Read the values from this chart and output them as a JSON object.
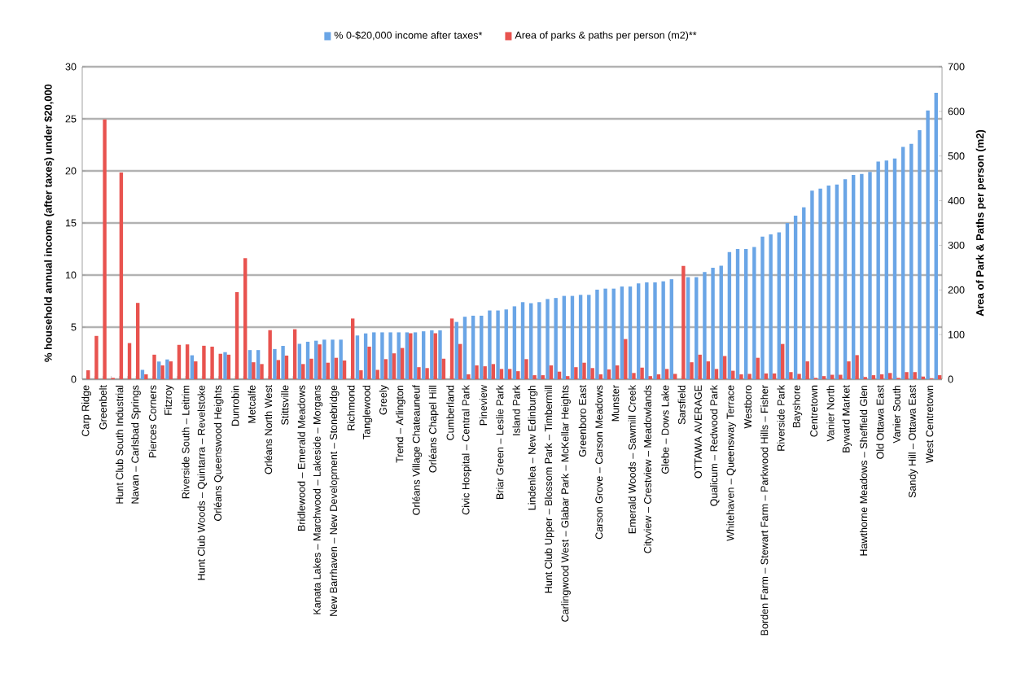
{
  "chart_data": {
    "type": "bar",
    "categories": [
      "Carp Ridge",
      null,
      "Greenbelt",
      null,
      "Hunt Club South Industrial",
      null,
      "Navan – Carlsbad Springs",
      null,
      "Pierces Corners",
      null,
      "Fitzroy",
      null,
      "Riverside South – Leitrim",
      null,
      "Hunt Club Woods – Quintarra – Revelstoke",
      null,
      "Orléans Queenswood Heights",
      null,
      "Dunrobin",
      null,
      "Metcalfe",
      null,
      "Orléans North West",
      null,
      "Stittsville",
      null,
      "Bridlewood – Emerald Meadows",
      null,
      "Kanata Lakes – Marchwood – Lakeside – Morgans",
      null,
      "New Barrhaven – New Development – Stonebridge",
      null,
      "Richmond",
      null,
      "Tanglewood",
      null,
      "Greely",
      null,
      "Trend – Arlington",
      null,
      "Orléans Village Chateauneuf",
      null,
      "Orléans Chapel Hill",
      null,
      "Cumberland",
      null,
      "Civic Hospital – Central Park",
      null,
      "Pineview",
      null,
      "Briar Green – Leslie Park",
      null,
      "Island Park",
      null,
      "Lindenlea – New Edinburgh",
      null,
      "Hunt Club Upper – Blossom Park – Timbermill",
      null,
      "Carlingwood West – Glabar Park – McKellar Heights",
      null,
      "Greenboro East",
      null,
      "Carson Grove – Carson Meadows",
      null,
      "Munster",
      null,
      "Emerald Woods – Sawmill Creek",
      null,
      "Cityview – Crestview – Meadowlands",
      null,
      "Glebe – Dows Lake",
      null,
      "Sarsfield",
      null,
      "OTTAWA AVERAGE",
      null,
      "Qualicum – Redwood Park",
      null,
      "Whitehaven – Queensway Terrace",
      null,
      "Westboro",
      null,
      "Borden Farm – Stewart Farm – Parkwood Hills – Fisher",
      null,
      "Riverside Park",
      null,
      "Bayshore",
      null,
      "Centretown",
      null,
      "Vanier North",
      null,
      "Byward Market",
      null,
      "Hawthorne Meadows – Sheffield Glen",
      null,
      "Old Ottawa East",
      null,
      "Vanier South",
      null,
      "Sandy Hill – Ottawa East",
      null,
      "West Centretown",
      null
    ],
    "series": [
      {
        "name": "% 0-$20,000 income after taxes*",
        "color": "#6aa5e6",
        "values": [
          null,
          null,
          null,
          0,
          null,
          null,
          null,
          0.9,
          null,
          1.7,
          1.9,
          null,
          null,
          2.3,
          null,
          null,
          null,
          2.6,
          null,
          null,
          2.8,
          2.8,
          null,
          2.9,
          3.2,
          null,
          3.4,
          3.6,
          3.7,
          3.8,
          3.8,
          3.8,
          null,
          4.2,
          4.4,
          4.5,
          4.5,
          4.5,
          4.5,
          4.5,
          4.5,
          4.6,
          4.7,
          4.7,
          null,
          5.5,
          6.0,
          6.1,
          6.1,
          6.6,
          6.6,
          6.7,
          7.0,
          7.4,
          7.3,
          7.4,
          7.7,
          7.8,
          8.0,
          8.0,
          8.1,
          8.1,
          8.6,
          8.7,
          8.7,
          8.9,
          8.9,
          9.2,
          9.3,
          9.3,
          9.4,
          9.6,
          null,
          9.8,
          9.8,
          10.3,
          10.7,
          10.9,
          12.2,
          12.5,
          12.5,
          12.7,
          13.7,
          13.9,
          14.1,
          15.0,
          15.7,
          16.5,
          18.1,
          18.3,
          18.6,
          18.7,
          19.2,
          19.6,
          19.7,
          19.9,
          20.9,
          21.0,
          21.2,
          22.3,
          22.6,
          23.9,
          25.8,
          27.5
        ]
      },
      {
        "name": "Area of parks & paths per person (m2)**",
        "color": "#e8534f",
        "axis": "y2",
        "values": [
          20,
          97,
          582,
          3,
          463,
          81,
          171,
          11,
          55,
          31,
          40,
          77,
          78,
          40,
          75,
          73,
          57,
          55,
          195,
          271,
          38,
          34,
          110,
          43,
          53,
          112,
          34,
          46,
          78,
          37,
          48,
          42,
          136,
          20,
          73,
          21,
          45,
          58,
          70,
          103,
          27,
          25,
          103,
          46,
          136,
          79,
          11,
          31,
          29,
          34,
          23,
          23,
          18,
          45,
          9,
          9,
          31,
          17,
          7,
          27,
          37,
          25,
          11,
          22,
          31,
          90,
          14,
          26,
          7,
          11,
          23,
          12,
          254,
          38,
          55,
          40,
          23,
          52,
          19,
          11,
          12,
          48,
          13,
          13,
          79,
          16,
          12,
          40,
          3,
          7,
          10,
          10,
          40,
          54,
          5,
          9,
          11,
          14,
          3,
          16,
          16,
          6,
          2,
          9
        ]
      }
    ],
    "ylabel": "% household annual income (after taxes) under $20,000",
    "y2label": "Area of Park & Paths per person (m2)",
    "ylim": [
      0,
      30
    ],
    "yticks": [
      0,
      5,
      10,
      15,
      20,
      25,
      30
    ],
    "y2lim": [
      0,
      700
    ],
    "y2ticks": [
      0,
      100,
      200,
      300,
      400,
      500,
      600,
      700
    ],
    "grid": "y",
    "legend": "top"
  }
}
